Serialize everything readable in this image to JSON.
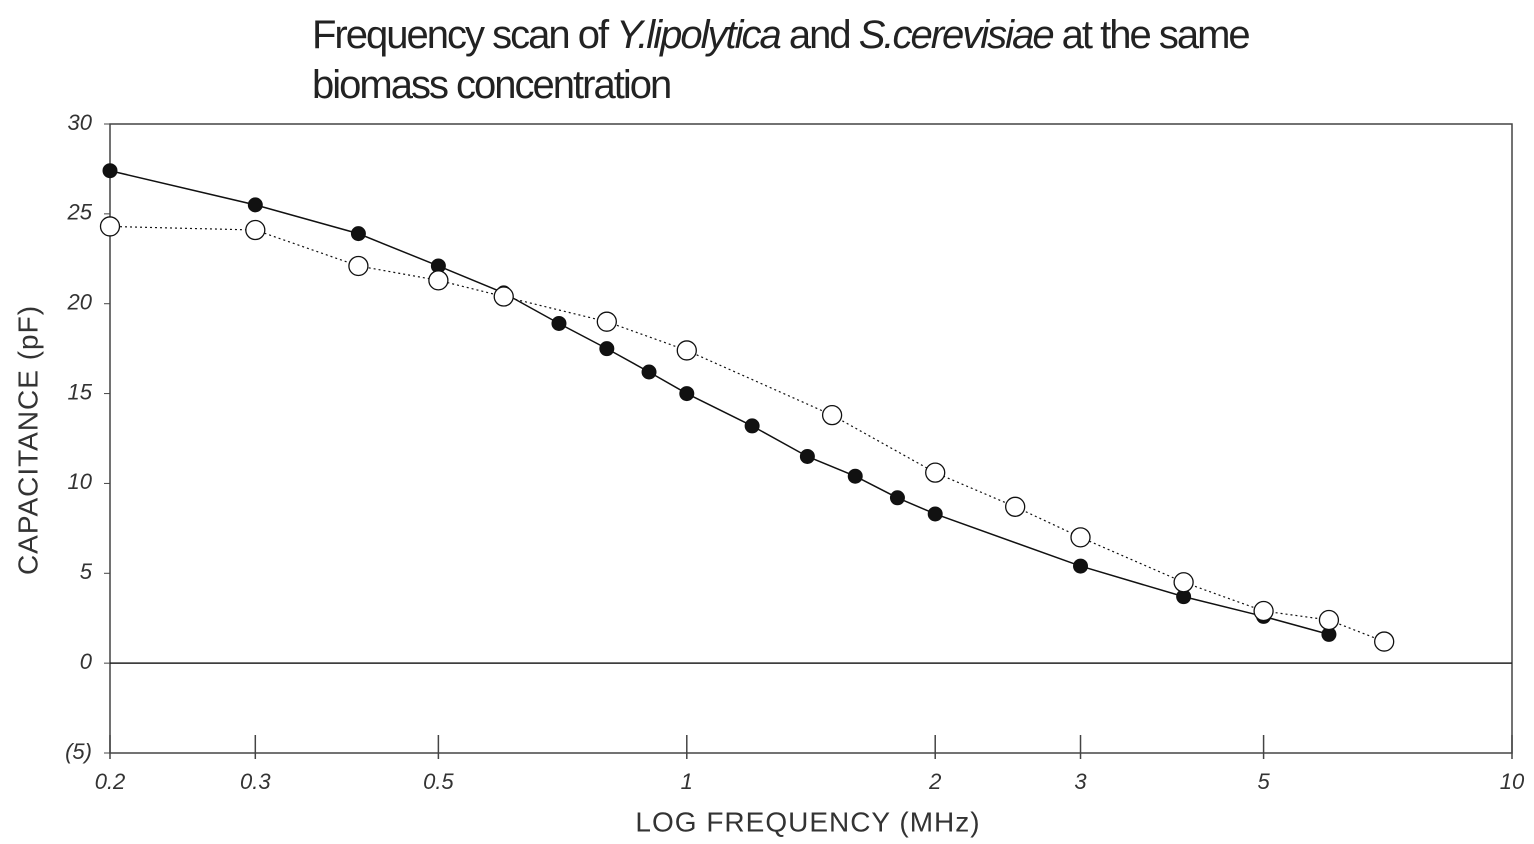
{
  "chart_data": {
    "type": "line",
    "title": [
      "Frequency scan of ",
      "Y.lipolytica",
      " and ",
      "S.cerevisiae",
      " at the same biomass concentration"
    ],
    "title_italic": [
      false,
      true,
      false,
      true,
      false
    ],
    "x_label": "LOG  FREQUENCY (MHz)",
    "y_label": "CAPACITANCE (pF)",
    "xscale": "log",
    "xlim": [
      0.2,
      10
    ],
    "xticks": [
      0.2,
      0.3,
      0.5,
      1,
      2,
      3,
      5,
      10
    ],
    "ylim": [
      -5,
      30
    ],
    "yticks": [
      {
        "value": -5,
        "label": "(5)"
      },
      0,
      5,
      10,
      15,
      20,
      25,
      30
    ],
    "zero_line": true,
    "series": [
      {
        "color": "#111111",
        "marker": "filled",
        "line_style": "solid",
        "x": [
          0.2,
          0.3,
          0.4,
          0.5,
          0.6,
          0.7,
          0.8,
          0.9,
          1.0,
          1.2,
          1.4,
          1.6,
          1.8,
          2.0,
          3,
          4,
          5,
          6
        ],
        "values": [
          27.4,
          25.5,
          23.9,
          22.1,
          20.6,
          18.9,
          17.5,
          16.2,
          15.0,
          13.2,
          11.5,
          10.4,
          9.2,
          8.3,
          5.4,
          3.7,
          2.6,
          1.6
        ]
      },
      {
        "color": "#111111",
        "marker": "open",
        "line_style": "dotted",
        "x": [
          0.2,
          0.3,
          0.4,
          0.5,
          0.6,
          0.8,
          1.0,
          1.5,
          2.0,
          2.5,
          3,
          4,
          5,
          6,
          7
        ],
        "values": [
          24.3,
          24.1,
          22.1,
          21.3,
          20.4,
          19.0,
          17.4,
          13.8,
          10.6,
          8.7,
          7.0,
          4.5,
          2.9,
          2.4,
          1.2
        ]
      }
    ]
  }
}
